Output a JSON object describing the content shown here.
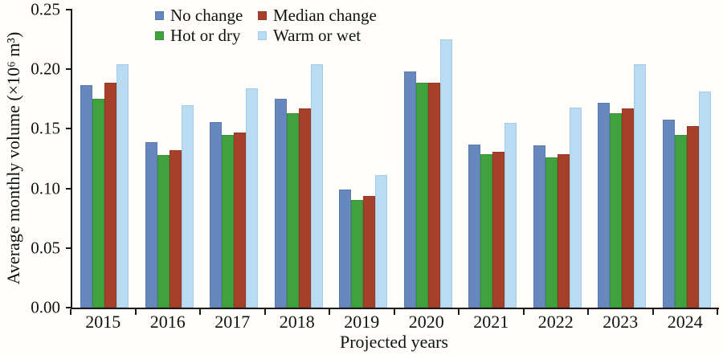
{
  "figure": {
    "background": "#fffefa",
    "axis_color": "#1a1a1a"
  },
  "chart_data": {
    "type": "bar",
    "title": "",
    "xlabel": "Projected years",
    "ylabel": "Average monthly volume (×10⁶ m³)",
    "ylim": [
      0,
      0.25
    ],
    "yticks": [
      0,
      0.05,
      0.1,
      0.15,
      0.2,
      0.25
    ],
    "ytick_labels": [
      "0.00",
      "0.05",
      "0.10",
      "0.15",
      "0.20",
      "0.25"
    ],
    "categories": [
      "2015",
      "2016",
      "2017",
      "2018",
      "2019",
      "2020",
      "2021",
      "2022",
      "2023",
      "2024"
    ],
    "series": [
      {
        "name": "No change",
        "color": "#6787bf",
        "border": "#5a79ae",
        "values": [
          0.187,
          0.139,
          0.156,
          0.175,
          0.099,
          0.198,
          0.137,
          0.136,
          0.172,
          0.158
        ]
      },
      {
        "name": "Hot or dry",
        "color": "#3fa23c",
        "border": "#379135",
        "values": [
          0.175,
          0.128,
          0.145,
          0.163,
          0.09,
          0.189,
          0.129,
          0.126,
          0.163,
          0.145
        ]
      },
      {
        "name": "Median change",
        "color": "#a7402b",
        "border": "#953826",
        "values": [
          0.189,
          0.132,
          0.147,
          0.167,
          0.094,
          0.189,
          0.131,
          0.129,
          0.167,
          0.152
        ]
      },
      {
        "name": "Warm or wet",
        "color": "#b9dcf2",
        "border": "#a4cbe6",
        "values": [
          0.204,
          0.17,
          0.184,
          0.204,
          0.111,
          0.225,
          0.155,
          0.168,
          0.204,
          0.181
        ]
      }
    ],
    "legend": {
      "position": "top-center",
      "order": [
        "No change",
        "Median change",
        "Hot or dry",
        "Warm or wet"
      ]
    },
    "grid": false
  }
}
